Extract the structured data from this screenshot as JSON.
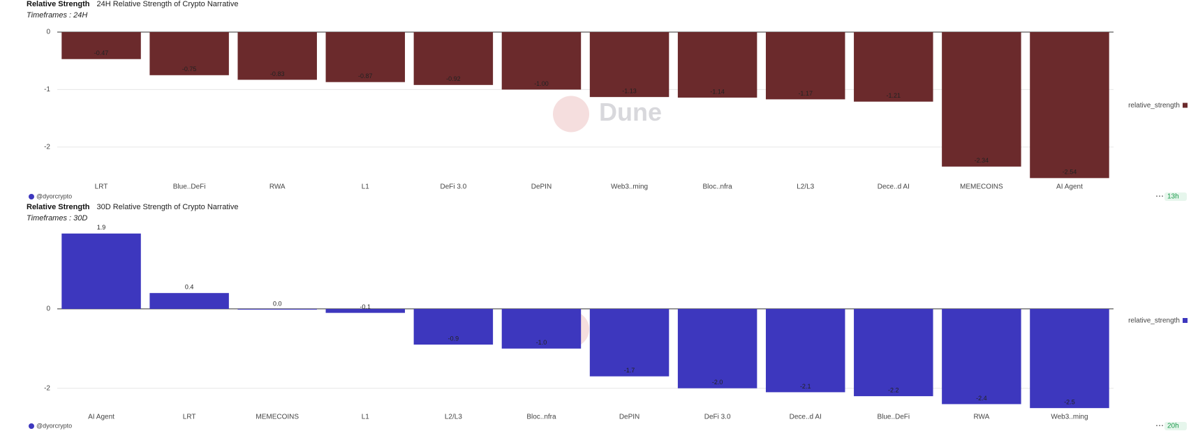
{
  "chart_data": [
    {
      "type": "bar",
      "header": "Relative Strength",
      "title": "24H Relative Strength of Crypto Narrative",
      "subtitle": "Timeframes : 24H",
      "categories": [
        "LRT",
        "Blue..DeFi",
        "RWA",
        "L1",
        "DeFi 3.0",
        "DePIN",
        "Web3..ming",
        "Bloc..nfra",
        "L2/L3",
        "Dece..d AI",
        "MEMECOINS",
        "AI Agent"
      ],
      "series": [
        {
          "name": "relative_strength",
          "color": "#6b2a2c",
          "values": [
            -0.47,
            -0.75,
            -0.83,
            -0.87,
            -0.92,
            -1,
            -1.13,
            -1.14,
            -1.17,
            -1.21,
            -2.34,
            -2.54
          ],
          "value_labels": [
            "-0.47",
            "-0.75",
            "-0.83",
            "-0.87",
            "-0.92",
            "-1.00",
            "-1.13",
            "-1.14",
            "-1.17",
            "-1.21",
            "-2.34",
            "-2.54"
          ]
        }
      ],
      "ylim": [
        -2.56,
        0
      ],
      "yticks": [
        0,
        -1,
        -2
      ],
      "grid": true,
      "legend": "right",
      "watermark": "Dune",
      "author": "@dyorcrypto",
      "age": "13h"
    },
    {
      "type": "bar",
      "header": "Relative Strength",
      "title": "30D Relative Strength of Crypto Narrative",
      "subtitle": "Timeframes : 30D",
      "categories": [
        "AI Agent",
        "LRT",
        "MEMECOINS",
        "L1",
        "L2/L3",
        "Bloc..nfra",
        "DePIN",
        "DeFi 3.0",
        "Dece..d AI",
        "Blue..DeFi",
        "RWA",
        "Web3..ming"
      ],
      "series": [
        {
          "name": "relative_strength",
          "color": "#3d37be",
          "values": [
            1.9,
            0.4,
            0,
            -0.1,
            -0.9,
            -1,
            -1.7,
            -2,
            -2.1,
            -2.2,
            -2.4,
            -2.5
          ],
          "value_labels": [
            "1.9",
            "0.4",
            "0.0",
            "-0.1",
            "-0.9",
            "-1.0",
            "-1.7",
            "-2.0",
            "-2.1",
            "-2.2",
            "-2.4",
            "-2.5"
          ]
        }
      ],
      "ylim": [
        -2.55,
        1.95
      ],
      "yticks": [
        0,
        -2
      ],
      "grid": true,
      "legend": "right",
      "watermark": "Dune",
      "author": "@dyorcrypto",
      "age": "20h"
    }
  ]
}
